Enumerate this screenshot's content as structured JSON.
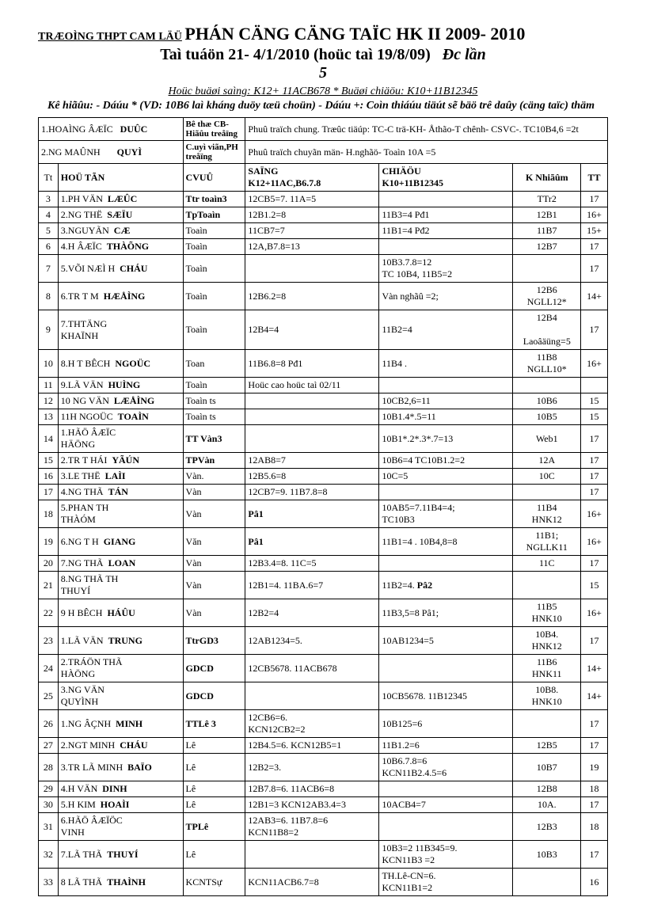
{
  "header": {
    "school": "TRÆOÌNG THPT CAM LÄÜ",
    "title": "PHÁN CÄNG CÄNG TAÏC  HK II  2009- 2010",
    "line2a": "Taì tuáön 21- 4/1/2010",
    "line2b": "(hoüc taì 19/8/09)",
    "line2c": "Đc lần",
    "line3": "5",
    "sub1": "Hoüc buäøi saìng: K12+ 11ACB678 * Buäøi chiäöu: K10+11B12345",
    "sub2": "Kê hiãûu: - Dáúu * (VD: 10B6 laì kháng duöy tæü choün)    - Dáúu +: Coìn thiáúu tiäút sẽ bäö trê daûy (cäng taïc) thäm"
  },
  "toprows": {
    "r1_label": "1.HOAÌNG ÂÆÏC",
    "r1_bold": "DUÛC",
    "r1_mid": "Bê thæ CB- Hiãûu treåïng",
    "r1_right": "Phuû traïch chung. Træûc tiäúp: TC-C trä-KH- Åthão-T chênh- CSVC-. TC10B4,6 =2t",
    "r2_label": "2.NG MAÛNH",
    "r2_bold": "QUYÌ",
    "r2_mid": "C.uyì viãn,PH treåïng",
    "r2_right": "Phuû traïch chuyãn män- H.nghãö- Toaìn 10A =5"
  },
  "headers": {
    "tt": "Tt",
    "hoten": "HOÜ TÃN",
    "cvuu": "CVUÛ",
    "sang": "SAÏNG",
    "sang2": "K12+11AC,B6.7.8",
    "chieu": "CHIÄÖU",
    "chieu2": "K10+11B12345",
    "knhieu": "K Nhiãûm",
    "ttx": "TT"
  },
  "rows": [
    {
      "tt": "3",
      "name": "1.PH VÄN",
      "bold": "LÆÛC",
      "cvuu": "Ttr toaìn3",
      "sang": "12CB5=7.   11A=5",
      "chieu": "",
      "kn": "TTr2",
      "ttx": "17"
    },
    {
      "tt": "4",
      "name": "2.NG THË",
      "bold": "SÆÏU",
      "cvuu": "TpToaìn",
      "sang": "12B1.2=8",
      "chieu": "11B3=4   Pđ1",
      "kn": "12B1",
      "ttx": "16+"
    },
    {
      "tt": "5",
      "name": "3.NGUYÃN",
      "bold": "CÆ",
      "cvuu": "Toaìn",
      "sang": "11CB7=7",
      "chieu": "11B1=4   Pđ2",
      "kn": "11B7",
      "ttx": "15+"
    },
    {
      "tt": "6",
      "name": "4.H ÂÆÏC",
      "bold": "THÀÕNG",
      "cvuu": "Toaìn",
      "sang": "12A,B7.8=13",
      "chieu": "",
      "kn": "12B7",
      "ttx": "17"
    },
    {
      "tt": "7",
      "name": "5.VÕI NÆÌ H",
      "bold": "CHÁU",
      "cvuu": "Toaìn",
      "sang": "",
      "chieu": "10B3.7.8=12\nTC 10B4, 11B5=2",
      "kn": "",
      "ttx": "17"
    },
    {
      "tt": "8",
      "name": "6.TR T M",
      "bold": "HÆÅÌNG",
      "cvuu": "Toaìn",
      "sang": "12B6.2=8",
      "chieu": "Vàn nghãû =2;",
      "kn": "12B6\nNGLL12*",
      "ttx": "14+"
    },
    {
      "tt": "9",
      "name": "7.THTÄNG\nKHAÏNH",
      "bold": "",
      "cvuu": "Toaìn",
      "sang": "12B4=4",
      "chieu": "11B2=4",
      "kn": "12B4\n\nLaoâäüng=5",
      "ttx": "17"
    },
    {
      "tt": "10",
      "name": "8.H T BÊCH",
      "bold": "NGOÜC",
      "cvuu": "Toan",
      "sang": "11B6.8=8   Pđ1",
      "chieu": "11B4 .",
      "kn": "11B8\nNGLL10*",
      "ttx": "16+"
    },
    {
      "tt": "11",
      "name": "9.LÃ VÄN",
      "bold": "HUÌNG",
      "cvuu": "Toaìn",
      "sang": "Hoüc cao hoüc taì 02/11",
      "chieu": "",
      "kn": "",
      "ttx": ""
    },
    {
      "tt": "12",
      "name": "10 NG VÄN",
      "bold": "LÆÅÌNG",
      "cvuu": "Toaìn ts",
      "sang": "",
      "chieu": "10CB2,6=11",
      "kn": "10B6",
      "ttx": "15"
    },
    {
      "tt": "13",
      "name": "11H NGOÜC",
      "bold": "TOAÌN",
      "cvuu": "Toaìn  ts",
      "sang": "",
      "chieu": "10B1.4*.5=11",
      "kn": "10B5",
      "ttx": "15"
    },
    {
      "tt": "14",
      "name": "1.HÃÖ ÂÆÏC\nHÄÖNG",
      "bold": "",
      "cvuu": "TT Vàn3",
      "sang": "",
      "chieu": "10B1*.2*.3*.7=13",
      "kn": "Web1",
      "ttx": "17"
    },
    {
      "tt": "15",
      "name": "2.TR T HÁI",
      "bold": "YÃÚN",
      "cvuu": "TPVàn",
      "sang": "12AB8=7",
      "chieu": "10B6=4   TC10B1.2=2",
      "kn": "12A",
      "ttx": "17"
    },
    {
      "tt": "16",
      "name": "3.LE THË",
      "bold": "LAÌI",
      "cvuu": "Vàn.",
      "sang": "12B5.6=8",
      "chieu": "10C=5",
      "kn": "10C",
      "ttx": "17"
    },
    {
      "tt": "17",
      "name": "4.NG THÃ",
      "bold": "TÁN",
      "cvuu": "Vàn",
      "sang": "12CB7=9.   11B7.8=8",
      "chieu": "",
      "kn": "",
      "ttx": "17"
    },
    {
      "tt": "18",
      "name": "5.PHAN TH\nTHÀÓM",
      "bold": "",
      "cvuu": "Vàn",
      "sang": "Pâ1",
      "chieu": "10AB5=7.11B4=4;\nTC10B3",
      "kn": "11B4\nHNK12",
      "ttx": "16+"
    },
    {
      "tt": "19",
      "name": "6.NG T  H",
      "bold": "GIANG",
      "cvuu": "Văn",
      "sang": "Pâ1",
      "chieu": "11B1=4 . 10B4,8=8",
      "kn": "11B1;\nNGLLK11",
      "ttx": "16+"
    },
    {
      "tt": "20",
      "name": "7.NG THÃ",
      "bold": "LOAN",
      "cvuu": "Vàn",
      "sang": "12B3.4=8.   11C=5",
      "chieu": "",
      "kn": "11C",
      "ttx": "17"
    },
    {
      "tt": "21",
      "name": "8.NG THÃ TH\nTHUYÍ",
      "bold": "",
      "cvuu": "Vàn",
      "sang": "12B1=4.   11BA.6=7",
      "chieu": "11B2=4.   Pâ2",
      "kn": "",
      "ttx": "15"
    },
    {
      "tt": "22",
      "name": "9 H BÊCH",
      "bold": "HÁÛU",
      "cvuu": "Vàn",
      "sang": "12B2=4",
      "chieu": "11B3,5=8   Pâ1;",
      "kn": "11B5\nHNK10",
      "ttx": "16+"
    },
    {
      "tt": "23",
      "name": "1.LÃ VÄN",
      "bold": "TRUNG",
      "cvuu": "TtrGD3",
      "sang": "12AB1234=5.",
      "chieu": "10AB1234=5",
      "kn": "10B4.\nHNK12",
      "ttx": "17"
    },
    {
      "tt": "24",
      "name": "2.TRÁÖN THÃ\nHÀÖNG",
      "bold": "",
      "cvuu": "GDCD",
      "sang": "12CB5678. 11ACB678",
      "chieu": "",
      "kn": "11B6\nHNK11",
      "ttx": "14+"
    },
    {
      "tt": "25",
      "name": "3.NG VÄN\nQUYÌNH",
      "bold": "",
      "cvuu": "GDCD",
      "sang": "",
      "chieu": "10CB5678.  11B12345",
      "kn": "10B8.\nHNK10",
      "ttx": "14+"
    },
    {
      "tt": "26",
      "name": "1.NG ÂÇNH",
      "bold": "MINH",
      "cvuu": "TTLê 3",
      "sang": "12CB6=6.\nKCN12CB2=2",
      "chieu": "10B125=6",
      "kn": "",
      "ttx": "17"
    },
    {
      "tt": "27",
      "name": "2.NGT MINH",
      "bold": "CHÁU",
      "cvuu": "Lê",
      "sang": "12B4.5=6.  KCN12B5=1",
      "chieu": "11B1.2=6",
      "kn": "12B5",
      "ttx": "17"
    },
    {
      "tt": "28",
      "name": "3.TR LÃ MINH",
      "bold": "BAÏO",
      "cvuu": "Lê",
      "sang": "12B2=3.",
      "chieu": "10B6.7.8=6\nKCN11B2.4.5=6",
      "kn": "10B7",
      "ttx": "19"
    },
    {
      "tt": "29",
      "name": "4.H VÄN",
      "bold": "DINH",
      "cvuu": "Lê",
      "sang": "12B7.8=6.   11ACB6=8",
      "chieu": "",
      "kn": "12B8",
      "ttx": "18"
    },
    {
      "tt": "30",
      "name": "5.H KIM",
      "bold": "HOAÌI",
      "cvuu": "Lê",
      "sang": "12B1=3 KCN12AB3.4=3",
      "chieu": "10ACB4=7",
      "kn": "10A.",
      "ttx": "17"
    },
    {
      "tt": "31",
      "name": "6.HÃÖ ÂÆÏÖC\nVINH",
      "bold": "",
      "cvuu": "TPLê",
      "sang": "12AB3=6. 11B7.8=6\nKCN11B8=2",
      "chieu": "",
      "kn": "12B3",
      "ttx": "18"
    },
    {
      "tt": "32",
      "name": "7.LÃ THÃ",
      "bold": "THUYÍ",
      "cvuu": "Lê",
      "sang": "",
      "chieu": "10B3=2  11B345=9.\nKCN11B3 =2",
      "kn": "10B3",
      "ttx": "17"
    },
    {
      "tt": "33",
      "name": "8 LÃ THÃ",
      "bold": "THAÌNH",
      "cvuu": "KCNTSự",
      "sang": "KCN11ACB6.7=8",
      "chieu": "TH.Lê-CN=6.\nKCN11B1=2",
      "kn": "",
      "ttx": "16"
    }
  ],
  "boldCvuu": [
    "Ttr toaìn3",
    "TpToaìn",
    "TT Vàn3",
    "TPVàn",
    "TtrGD3",
    "GDCD",
    "TTLê 3",
    "TPLê"
  ],
  "boldSang": [
    "Pâ1",
    "Pâ1"
  ],
  "boldChieuSuffix": {
    "21": "Pâ2"
  }
}
